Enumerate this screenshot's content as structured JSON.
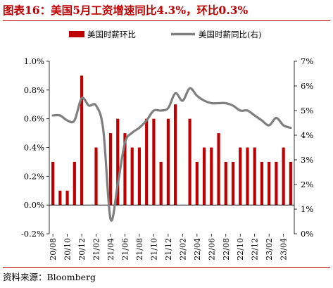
{
  "title": "图表16：美国5月工资增速同比4.3%，环比0.3%",
  "source": "资料来源：Bloomberg",
  "colors": {
    "bar": "#c00000",
    "line": "#7f7f7f",
    "title": "#c00000"
  },
  "chart_data": {
    "type": "bar+line",
    "legend_position": "top",
    "grid": false,
    "x_tick_labels": [
      "20/08",
      "20/10",
      "20/12",
      "21/02",
      "21/04",
      "21/06",
      "21/08",
      "21/10",
      "21/12",
      "22/02",
      "22/04",
      "22/06",
      "22/08",
      "22/10",
      "22/12",
      "23/02",
      "23/04"
    ],
    "left_axis": {
      "ticks": [
        "-0.2%",
        "0.0%",
        "0.2%",
        "0.4%",
        "0.6%",
        "0.8%",
        "1.0%"
      ],
      "range": [
        -0.2,
        1.0
      ]
    },
    "right_axis": {
      "ticks": [
        "0%",
        "1%",
        "2%",
        "3%",
        "4%",
        "5%",
        "6%",
        "7%"
      ],
      "range": [
        0,
        7
      ]
    },
    "categories": [
      "20/08",
      "20/09",
      "20/10",
      "20/11",
      "20/12",
      "21/01",
      "21/02",
      "21/03",
      "21/04",
      "21/05",
      "21/06",
      "21/07",
      "21/08",
      "21/09",
      "21/10",
      "21/11",
      "21/12",
      "22/01",
      "22/02",
      "22/03",
      "22/04",
      "22/05",
      "22/06",
      "22/07",
      "22/08",
      "22/09",
      "22/10",
      "22/11",
      "22/12",
      "23/01",
      "23/02",
      "23/03",
      "23/04",
      "23/05"
    ],
    "series": [
      {
        "name": "美国时薪环比",
        "type": "bar",
        "axis": "left",
        "values": [
          0.3,
          0.1,
          0.1,
          0.3,
          0.9,
          0.0,
          0.4,
          0.0,
          0.5,
          0.6,
          0.5,
          0.4,
          0.4,
          0.6,
          0.6,
          0.3,
          0.6,
          0.7,
          0.0,
          0.6,
          0.3,
          0.4,
          0.4,
          0.5,
          0.3,
          0.3,
          0.4,
          0.4,
          0.4,
          0.3,
          0.3,
          0.3,
          0.4,
          0.3
        ]
      },
      {
        "name": "美国时薪同比(右)",
        "type": "line",
        "axis": "right",
        "values": [
          4.8,
          4.8,
          4.6,
          4.6,
          5.5,
          5.2,
          5.2,
          4.2,
          0.6,
          2.0,
          3.7,
          4.1,
          4.3,
          4.6,
          5.0,
          5.0,
          5.1,
          5.7,
          5.4,
          5.9,
          5.6,
          5.4,
          5.3,
          5.3,
          5.3,
          5.2,
          5.0,
          5.0,
          4.8,
          4.6,
          4.4,
          4.7,
          4.4,
          4.3
        ]
      }
    ]
  }
}
